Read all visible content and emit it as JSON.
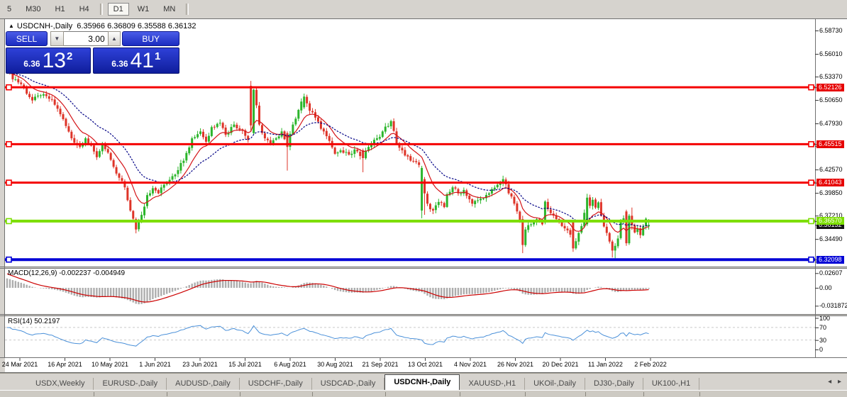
{
  "toolbar": {
    "timeframes": [
      "5",
      "M30",
      "H1",
      "H4",
      "D1",
      "W1",
      "MN"
    ],
    "active": "D1",
    "active_index": 4
  },
  "chart": {
    "symbol_label": "USDCNH-,Daily",
    "ohlc_label": "6.35966 6.36809 6.35588 6.36132",
    "title_arrow": "▲"
  },
  "trade_panel": {
    "sell_label": "SELL",
    "buy_label": "BUY",
    "volume": "3.00",
    "spinner_down": "▼",
    "spinner_up": "▲",
    "sell_price_small": "6.36",
    "sell_price_big": "13",
    "sell_price_sup": "2",
    "buy_price_small": "6.36",
    "buy_price_big": "41",
    "buy_price_sup": "1"
  },
  "price_axis": {
    "labels": [
      "6.58730",
      "6.56010",
      "6.53370",
      "6.50650",
      "6.47930",
      "6.45290",
      "6.42570",
      "6.39850",
      "6.37210",
      "6.34490",
      "6.31850"
    ],
    "badges": [
      {
        "text": "6.36132",
        "bg": "#141414",
        "fg": "#fff"
      },
      {
        "text": "6.36570",
        "bg": "#7CDE00",
        "fg": "#fff"
      },
      {
        "text": "6.52126",
        "bg": "#E60000",
        "fg": "#fff"
      },
      {
        "text": "6.45515",
        "bg": "#E60000",
        "fg": "#fff"
      },
      {
        "text": "6.41043",
        "bg": "#E60000",
        "fg": "#fff"
      },
      {
        "text": "6.32098",
        "bg": "#0202D6",
        "fg": "#fff"
      }
    ]
  },
  "indicators": {
    "macd": {
      "label": "MACD(12,26,9)",
      "values": "-0.002237 -0.004949",
      "scale": [
        "0.02607",
        "0.00",
        "-0.031872"
      ]
    },
    "rsi": {
      "label": "RSI(14)",
      "value": "50.2197",
      "scale": [
        "100",
        "70",
        "30",
        "0"
      ],
      "levels": [
        70,
        30
      ]
    }
  },
  "tab_bar": {
    "tabs": [
      "USDX,Weekly",
      "EURUSD-,Daily",
      "AUDUSD-,Daily",
      "USDCHF-,Daily",
      "USDCAD-,Daily",
      "USDCNH-,Daily",
      "XAUUSD-,H1",
      "UKOil-,Daily",
      "DJ30-,Daily",
      "UK100-,H1"
    ],
    "active_index": 5,
    "scroll_left": "◂",
    "scroll_right": "▸"
  },
  "chart_data": {
    "type": "candlestick",
    "symbol": "USDCNH-,Daily",
    "count": 230,
    "price_axis_top": 6.5997,
    "price_axis_bottom": 6.3129,
    "current_ohlc": [
      6.35966,
      6.36809,
      6.35588,
      6.36132
    ],
    "dates": [
      "24 Mar 2021",
      "16 Apr 2021",
      "10 May 2021",
      "1 Jun 2021",
      "23 Jun 2021",
      "15 Jul 2021",
      "6 Aug 2021",
      "30 Aug 2021",
      "21 Sep 2021",
      "13 Oct 2021",
      "4 Nov 2021",
      "26 Nov 2021",
      "20 Dec 2021",
      "11 Jan 2022",
      "2 Feb 2022"
    ],
    "anchors": [
      [
        0,
        6.538
      ],
      [
        5,
        6.525
      ],
      [
        9,
        6.506
      ],
      [
        12,
        6.512
      ],
      [
        16,
        6.507
      ],
      [
        19,
        6.49
      ],
      [
        23,
        6.462
      ],
      [
        26,
        6.452
      ],
      [
        28,
        6.462
      ],
      [
        32,
        6.44
      ],
      [
        34,
        6.455
      ],
      [
        37,
        6.437
      ],
      [
        39,
        6.421
      ],
      [
        42,
        6.405
      ],
      [
        44,
        6.378
      ],
      [
        46,
        6.356
      ],
      [
        48,
        6.373
      ],
      [
        50,
        6.396
      ],
      [
        52,
        6.404
      ],
      [
        54,
        6.398
      ],
      [
        56,
        6.408
      ],
      [
        59,
        6.418
      ],
      [
        61,
        6.425
      ],
      [
        64,
        6.445
      ],
      [
        66,
        6.462
      ],
      [
        69,
        6.47
      ],
      [
        71,
        6.458
      ],
      [
        73,
        6.475
      ],
      [
        76,
        6.48
      ],
      [
        78,
        6.466
      ],
      [
        81,
        6.478
      ],
      [
        84,
        6.471
      ],
      [
        86,
        6.46
      ],
      [
        87,
        6.477
      ],
      [
        88,
        6.5185
      ],
      [
        90,
        6.478
      ],
      [
        92,
        6.462
      ],
      [
        94,
        6.455
      ],
      [
        96,
        6.462
      ],
      [
        98,
        6.47
      ],
      [
        100,
        6.452
      ],
      [
        102,
        6.478
      ],
      [
        104,
        6.495
      ],
      [
        106,
        6.5105
      ],
      [
        108,
        6.494
      ],
      [
        110,
        6.486
      ],
      [
        113,
        6.47
      ],
      [
        115,
        6.459
      ],
      [
        117,
        6.444
      ],
      [
        119,
        6.448
      ],
      [
        122,
        6.443
      ],
      [
        124,
        6.449
      ],
      [
        127,
        6.439
      ],
      [
        129,
        6.452
      ],
      [
        132,
        6.462
      ],
      [
        134,
        6.47
      ],
      [
        137,
        6.482
      ],
      [
        139,
        6.456
      ],
      [
        142,
        6.442
      ],
      [
        144,
        6.436
      ],
      [
        147,
        6.431
      ],
      [
        148,
        6.4275
      ],
      [
        149,
        6.398
      ],
      [
        150,
        6.386
      ],
      [
        152,
        6.378
      ],
      [
        154,
        6.388
      ],
      [
        156,
        6.382
      ],
      [
        157,
        6.397
      ],
      [
        159,
        6.405
      ],
      [
        161,
        6.398
      ],
      [
        163,
        6.402
      ],
      [
        166,
        6.386
      ],
      [
        168,
        6.39
      ],
      [
        170,
        6.392
      ],
      [
        172,
        6.398
      ],
      [
        175,
        6.408
      ],
      [
        177,
        6.4145
      ],
      [
        179,
        6.398
      ],
      [
        181,
        6.386
      ],
      [
        183,
        6.366
      ],
      [
        184,
        6.338
      ],
      [
        185,
        6.356
      ],
      [
        187,
        6.362
      ],
      [
        189,
        6.368
      ],
      [
        191,
        6.362
      ],
      [
        192,
        6.3885
      ],
      [
        194,
        6.375
      ],
      [
        196,
        6.368
      ],
      [
        198,
        6.36
      ],
      [
        200,
        6.355
      ],
      [
        201,
        6.35
      ],
      [
        202,
        6.334
      ],
      [
        204,
        6.352
      ],
      [
        205,
        6.36
      ],
      [
        207,
        6.393
      ],
      [
        208,
        6.3835
      ],
      [
        209,
        6.3905
      ],
      [
        210,
        6.3815
      ],
      [
        211,
        6.3875
      ],
      [
        212,
        6.372
      ],
      [
        213,
        6.3595
      ],
      [
        214,
        6.352
      ],
      [
        215,
        6.342
      ],
      [
        216,
        6.3315
      ],
      [
        217,
        6.337
      ],
      [
        218,
        6.3455
      ],
      [
        219,
        6.3655
      ],
      [
        220,
        6.369
      ],
      [
        221,
        6.34
      ],
      [
        222,
        6.372
      ],
      [
        223,
        6.361
      ],
      [
        224,
        6.3525
      ],
      [
        225,
        6.357
      ],
      [
        226,
        6.3495
      ],
      [
        227,
        6.3595
      ],
      [
        228,
        6.3685
      ],
      [
        229,
        6.36132
      ]
    ],
    "specials": {
      "46": [
        6.368,
        6.37,
        6.3515,
        6.356
      ],
      "87": [
        6.523,
        6.5287,
        6.47,
        6.477
      ],
      "88": [
        6.468,
        6.5195,
        6.4665,
        6.5185
      ],
      "100": [
        6.468,
        6.47,
        6.4245,
        6.452
      ],
      "106": [
        6.498,
        6.514,
        6.496,
        6.5105
      ],
      "127": [
        6.448,
        6.45,
        6.4225,
        6.439
      ],
      "148": [
        6.378,
        6.43,
        6.369,
        6.4275
      ],
      "149": [
        6.4145,
        6.417,
        6.373,
        6.398
      ],
      "184": [
        6.368,
        6.372,
        6.3285,
        6.338
      ],
      "192": [
        6.364,
        6.39,
        6.362,
        6.3885
      ],
      "202": [
        6.3655,
        6.366,
        6.33,
        6.334
      ],
      "207": [
        6.362,
        6.3975,
        6.36,
        6.393
      ],
      "216": [
        6.342,
        6.344,
        6.3235,
        6.3315
      ],
      "217": [
        6.3315,
        6.34,
        6.3225,
        6.337
      ],
      "221": [
        6.377,
        6.379,
        6.337,
        6.34
      ],
      "222": [
        6.34,
        6.374,
        6.338,
        6.372
      ],
      "223": [
        6.372,
        6.3815,
        6.3555,
        6.361
      ],
      "229": [
        6.35966,
        6.36809,
        6.35588,
        6.36132
      ]
    },
    "hlines": [
      {
        "price": 6.52126,
        "color": "#F40000",
        "w": 3
      },
      {
        "price": 6.45515,
        "color": "#F40000",
        "w": 3
      },
      {
        "price": 6.41043,
        "color": "#F40000",
        "w": 3
      },
      {
        "price": 6.3657,
        "color": "#7CDE00",
        "w": 4
      },
      {
        "price": 6.32098,
        "color": "#0202D6",
        "w": 4
      }
    ],
    "colors": {
      "candle_up": "#2BB52B",
      "candle_down": "#DE3428",
      "ma_fast": "#D41418",
      "ma_slow": "#000085",
      "macd_hist": "#ADADAD",
      "macd_signal": "#CC0000",
      "rsi_line": "#4A90D9",
      "level_dash": "#C9C9C9"
    },
    "ma_periods": [
      10,
      25
    ],
    "macd_params": [
      12,
      26,
      9
    ],
    "rsi_period": 14
  }
}
